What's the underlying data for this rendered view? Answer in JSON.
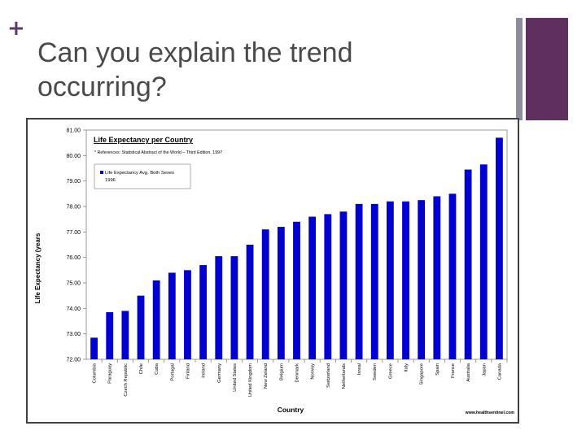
{
  "slide": {
    "bullet": "+",
    "title": "Can you explain the trend occurring?"
  },
  "colors": {
    "bar": "#0000d0",
    "accent_purple": "#5f2f5f",
    "accent_grey": "#8c8c9c"
  },
  "chart_data": {
    "type": "bar",
    "title": "Life Expectancy per Country",
    "reference": "* References: Statistical Abstract of the World – Third Edition, 1997",
    "legend": "Life Expectancy Avg. Both Sexes 1996",
    "legend_line1": "Life Expectancy Avg. Both Sexes",
    "legend_line2": "1996",
    "xlabel": "Country",
    "ylabel": "Life Expectancy (years",
    "source": "www.healthsentinel.com",
    "ylim": [
      72.0,
      81.0
    ],
    "yticks": [
      "72.00",
      "73.00",
      "74.00",
      "75.00",
      "76.00",
      "77.00",
      "78.00",
      "79.00",
      "80.00",
      "81.00"
    ],
    "categories": [
      "Columbia",
      "Paraguay",
      "Czech Republic",
      "Chile",
      "Cuba",
      "Portugal",
      "Finland",
      "Ireland",
      "Germany",
      "United States",
      "United Kingdom",
      "New Zeland",
      "Belgium",
      "Denmark",
      "Norway",
      "Switzerland",
      "Netherlands",
      "Isreal",
      "Sweden",
      "Greece",
      "Italy",
      "Singapore",
      "Spain",
      "France",
      "Australia",
      "Japan",
      "Canada"
    ],
    "values": [
      72.85,
      73.85,
      73.9,
      74.5,
      75.1,
      75.4,
      75.5,
      75.7,
      76.05,
      76.05,
      76.5,
      77.1,
      77.2,
      77.4,
      77.6,
      77.7,
      77.8,
      78.1,
      78.1,
      78.2,
      78.2,
      78.25,
      78.4,
      78.5,
      79.45,
      79.65,
      80.7
    ]
  }
}
